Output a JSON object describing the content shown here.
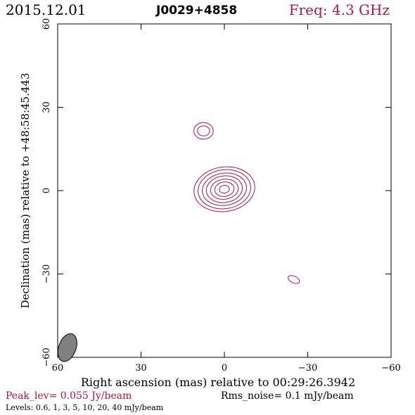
{
  "header": {
    "date": "2015.12.01",
    "source": "J0029+4858",
    "freq": "Freq: 4.3 GHz"
  },
  "colors": {
    "contour": "#b0163e",
    "axes": "#000000",
    "beam_fill": "#808080"
  },
  "chart_data": {
    "type": "contour",
    "title": "J0029+4858",
    "xlabel": "Right ascension (mas) relative to 00:29:26.3942",
    "ylabel": "Declination (mas) relative to +48:58:45.443",
    "xlim": [
      60,
      -60
    ],
    "ylim": [
      -60,
      60
    ],
    "x_ticks": [
      60,
      30,
      0,
      -30,
      -60
    ],
    "y_ticks": [
      60,
      30,
      0,
      -30,
      -60
    ],
    "x_tick_labels": [
      "60",
      "30",
      "0",
      "−30",
      "−60"
    ],
    "y_tick_labels": [
      "60",
      "30",
      "0",
      "−30",
      "−60"
    ],
    "peak_flux_jy_per_beam": 0.055,
    "rms_noise_mjy_per_beam": 0.1,
    "levels_mjy_per_beam": [
      0.6,
      1,
      3,
      5,
      10,
      20,
      40
    ],
    "components": [
      {
        "x": 0,
        "y": 0.5,
        "contours": [
          [
            11,
            8,
            -8
          ],
          [
            9.5,
            7,
            -8
          ],
          [
            8,
            5.8,
            -8
          ],
          [
            6.5,
            4.8,
            -8
          ],
          [
            5,
            3.6,
            -8
          ],
          [
            3.5,
            2.6,
            -8
          ],
          [
            1.8,
            1.4,
            -8
          ]
        ]
      },
      {
        "x": 7.5,
        "y": 21.5,
        "contours": [
          [
            3.5,
            3,
            0
          ],
          [
            2.2,
            1.8,
            0
          ]
        ]
      },
      {
        "x": -25,
        "y": -32,
        "contours": [
          [
            2.2,
            1.2,
            25
          ]
        ]
      }
    ],
    "beam": {
      "x": 56.5,
      "y": -56.5,
      "major": 5.2,
      "minor": 3.1,
      "pa": -70
    }
  },
  "footer": {
    "peak": "Peak_lev=  0.055 Jy/beam",
    "rms": "Rms_noise=   0.1 mJy/beam",
    "levels": "Levels: 0.6,    1,    3,    5,   10,   20,   40 mJy/beam"
  }
}
